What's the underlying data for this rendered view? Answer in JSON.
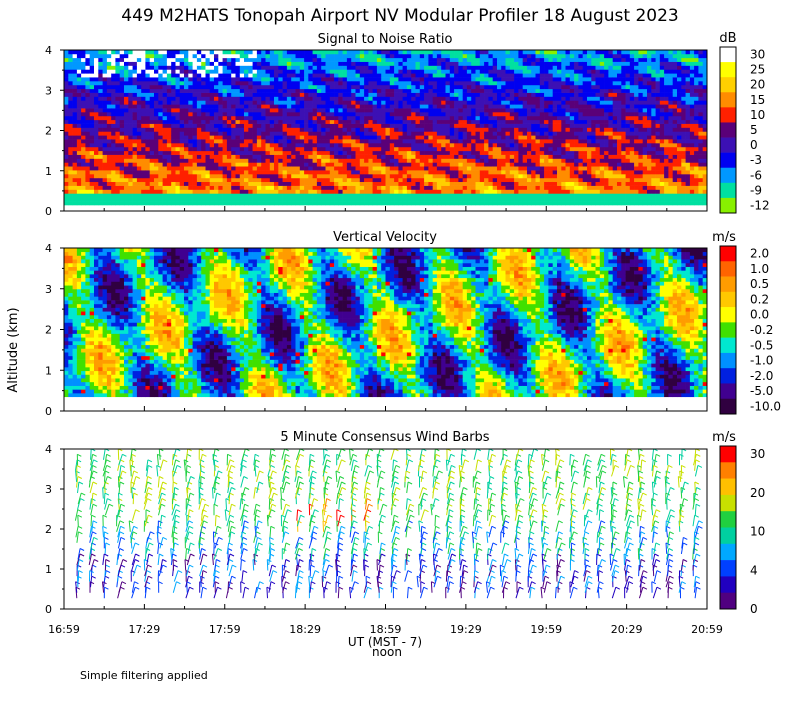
{
  "title": "449 M2HATS Tonopah Airport NV Modular Profiler 18 August 2023",
  "footer_note": "Simple filtering applied",
  "y_axis_label": "Altitude (km)",
  "x_axis": {
    "label": "UT  (MST - 7)",
    "sublabel": "noon",
    "tick_labels": [
      "16:59",
      "17:29",
      "17:59",
      "18:29",
      "18:59",
      "19:29",
      "19:59",
      "20:29",
      "20:59"
    ],
    "range_hours": [
      16.9833,
      20.9833
    ]
  },
  "chart_data": [
    {
      "type": "heatmap",
      "title": "Signal to Noise Ratio",
      "unit": "dB",
      "ylim": [
        0,
        4
      ],
      "y_ticks": [
        "0",
        "1",
        "2",
        "3",
        "4"
      ],
      "colorbar_labels": [
        "30",
        "25",
        "20",
        "15",
        "10",
        "5",
        "0",
        "-3",
        "-6",
        "-9",
        "-12"
      ],
      "colors": [
        "#ffffff",
        "#ffff00",
        "#ffd000",
        "#ff8c00",
        "#ff2000",
        "#5a0078",
        "#3c10b4",
        "#0000f0",
        "#0098ff",
        "#00e0a0",
        "#88f000"
      ],
      "data_height_range_km": [
        0.15,
        4.0
      ]
    },
    {
      "type": "heatmap",
      "title": "Vertical Velocity",
      "unit": "m/s",
      "ylim": [
        0,
        4
      ],
      "y_ticks": [
        "0",
        "1",
        "2",
        "3",
        "4"
      ],
      "colorbar_labels": [
        "2.0",
        "1.0",
        "0.5",
        "0.2",
        "0.0",
        "-0.2",
        "-0.5",
        "-1.0",
        "-2.0",
        "-5.0",
        "-10.0"
      ],
      "colors": [
        "#ff0000",
        "#ff6400",
        "#ff9c00",
        "#ffc800",
        "#ffff00",
        "#40e000",
        "#00e8d0",
        "#0090ff",
        "#0020e0",
        "#400090",
        "#300040"
      ],
      "data_height_range_km": [
        0.35,
        4.0
      ]
    },
    {
      "type": "scatter",
      "title": "5 Minute Consensus Wind Barbs",
      "unit": "m/s",
      "ylim": [
        0,
        4
      ],
      "y_ticks": [
        "0",
        "1",
        "2",
        "3",
        "4"
      ],
      "colorbar_labels": [
        "30",
        "20",
        "10",
        "4",
        "0"
      ],
      "colors": [
        "#ff0000",
        "#ff8000",
        "#ffc000",
        "#c8e000",
        "#20d040",
        "#00d0a0",
        "#00a8ff",
        "#0040ff",
        "#2000c0",
        "#500080"
      ],
      "data_height_range_km": [
        0.2,
        3.8
      ]
    }
  ]
}
